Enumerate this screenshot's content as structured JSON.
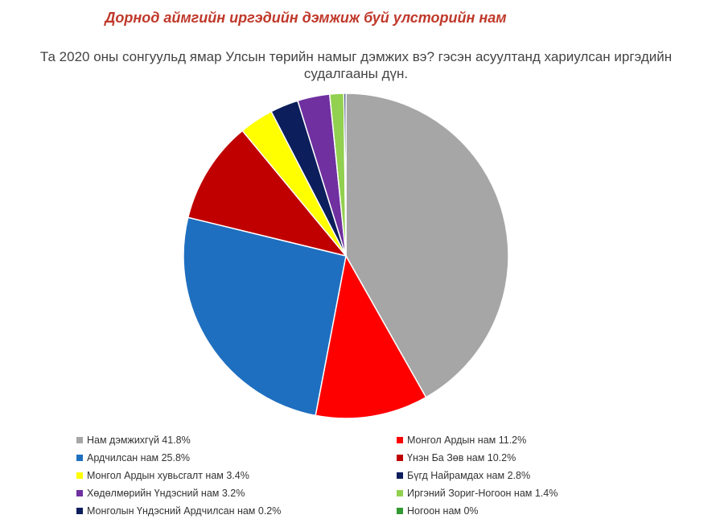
{
  "header": {
    "headline": "Дорнод аймгийн иргэдийн дэмжиж буй улсторийн нам",
    "subtitle_line1": "Та 2020 оны сонгуульд ямар Улсын төрийн намыг дэмжих вэ? гэсэн асуултанд хариулсан иргэдийн",
    "subtitle_line2": "судалгааны дүн."
  },
  "chart_data": {
    "type": "pie",
    "title": "Та 2020 оны сонгуульд ямар Улсын төрийн намыг дэмжих вэ? гэсэн асуултанд хариулсан иргэдийн судалгааны дүн.",
    "unit": "%",
    "legend_placement": "bottom",
    "slices": [
      {
        "label": "Нам дэмжихгүй 41.8%",
        "value": 41.8,
        "color": "#a6a6a6"
      },
      {
        "label": "Монгол Ардын нам 11.2%",
        "value": 11.2,
        "color": "#ff0000"
      },
      {
        "label": "Ардчилсан нам 25.8%",
        "value": 25.8,
        "color": "#1f6fc0"
      },
      {
        "label": "Үнэн Ба Зөв нам 10.2%",
        "value": 10.2,
        "color": "#c00000"
      },
      {
        "label": "Монгол Ардын хувьсгалт нам 3.4%",
        "value": 3.4,
        "color": "#ffff00"
      },
      {
        "label": "Бүгд Найрамдах нам 2.8%",
        "value": 2.8,
        "color": "#0c1e5b"
      },
      {
        "label": "Хөдөлмөрийн Үндэсний нам 3.2%",
        "value": 3.2,
        "color": "#7030a0"
      },
      {
        "label": "Иргэний Зориг-Ногоон нам 1.4%",
        "value": 1.4,
        "color": "#92d050"
      },
      {
        "label": "Монголын Үндэсний Ардчилсан нам 0.2%",
        "value": 0.2,
        "color": "#0c1e5b"
      },
      {
        "label": "Ногоон нам 0%",
        "value": 0,
        "color": "#339933"
      }
    ],
    "pie_order": [
      0,
      1,
      2,
      3,
      4,
      5,
      6,
      7,
      8,
      9
    ]
  }
}
